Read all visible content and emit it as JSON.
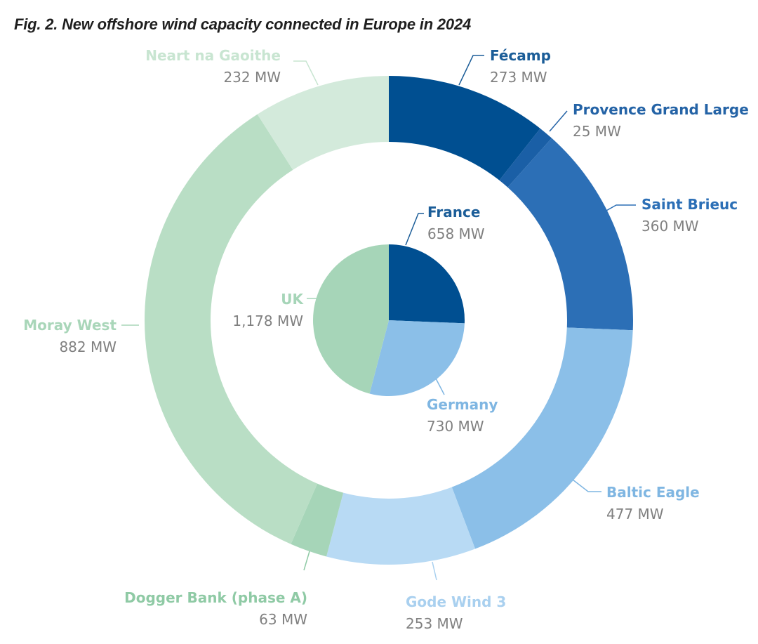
{
  "chart_data": {
    "type": "pie",
    "title": "Fig. 2. New offshore wind capacity connected in Europe in 2024",
    "inner": [
      {
        "name": "France",
        "value": 658,
        "label": "658 MW",
        "color": "#004f91",
        "label_color": "#1b5d98"
      },
      {
        "name": "Germany",
        "value": 730,
        "label": "730 MW",
        "color": "#8bbfe8",
        "label_color": "#7fb6e2"
      },
      {
        "name": "UK",
        "value": 1178,
        "label": "1,178 MW",
        "color": "#a6d5b8",
        "label_color": "#a6d5b8"
      }
    ],
    "outer": [
      {
        "name": "Fécamp",
        "value": 273,
        "label": "273 MW",
        "color": "#004f91",
        "label_color": "#1b5d98"
      },
      {
        "name": "Provence Grand Large",
        "value": 25,
        "label": "25 MW",
        "color": "#1a5fa6",
        "label_color": "#2463a6"
      },
      {
        "name": "Saint Brieuc",
        "value": 360,
        "label": "360 MW",
        "color": "#2c6fb6",
        "label_color": "#2c6fb6"
      },
      {
        "name": "Baltic Eagle",
        "value": 477,
        "label": "477 MW",
        "color": "#8bbfe8",
        "label_color": "#7fb6e2"
      },
      {
        "name": "Gode Wind 3",
        "value": 253,
        "label": "253 MW",
        "color": "#b8daf4",
        "label_color": "#a9d0ef"
      },
      {
        "name": "Dogger Bank (phase A)",
        "value": 63,
        "label": "63 MW",
        "color": "#a6d5b8",
        "label_color": "#8fcaa5"
      },
      {
        "name": "Moray West",
        "value": 882,
        "label": "882 MW",
        "color": "#b9dec5",
        "label_color": "#a9d6b9"
      },
      {
        "name": "Neart na Gaoithe",
        "value": 232,
        "label": "232 MW",
        "color": "#d3eadb",
        "label_color": "#c8e5d1"
      }
    ]
  }
}
